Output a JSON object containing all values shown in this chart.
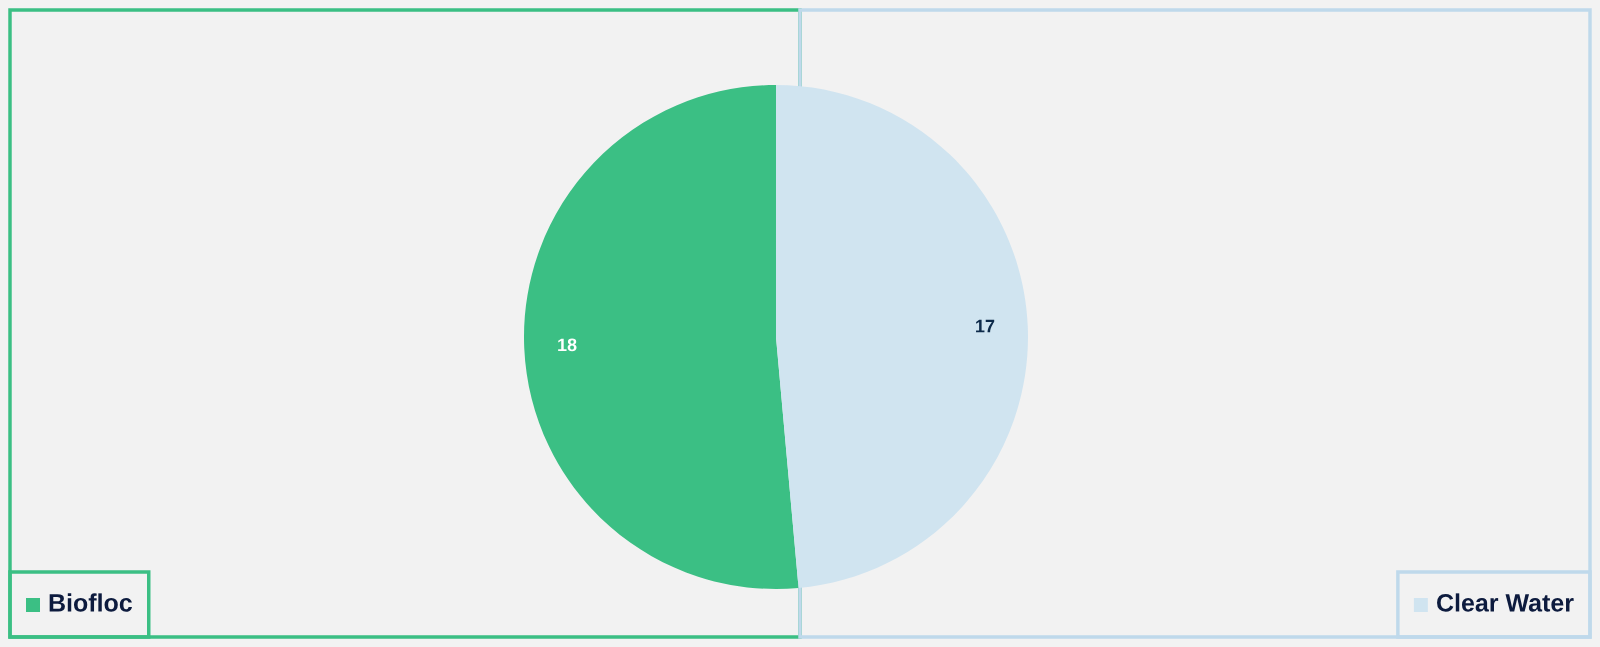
{
  "chart_data": {
    "type": "pie",
    "categories": [
      "Biofloc",
      "Clear Water"
    ],
    "values": [
      18,
      17
    ],
    "colors": [
      "#3bbf84",
      "#d0e4f0"
    ],
    "data_labels": true,
    "legend": "bottom"
  }
}
